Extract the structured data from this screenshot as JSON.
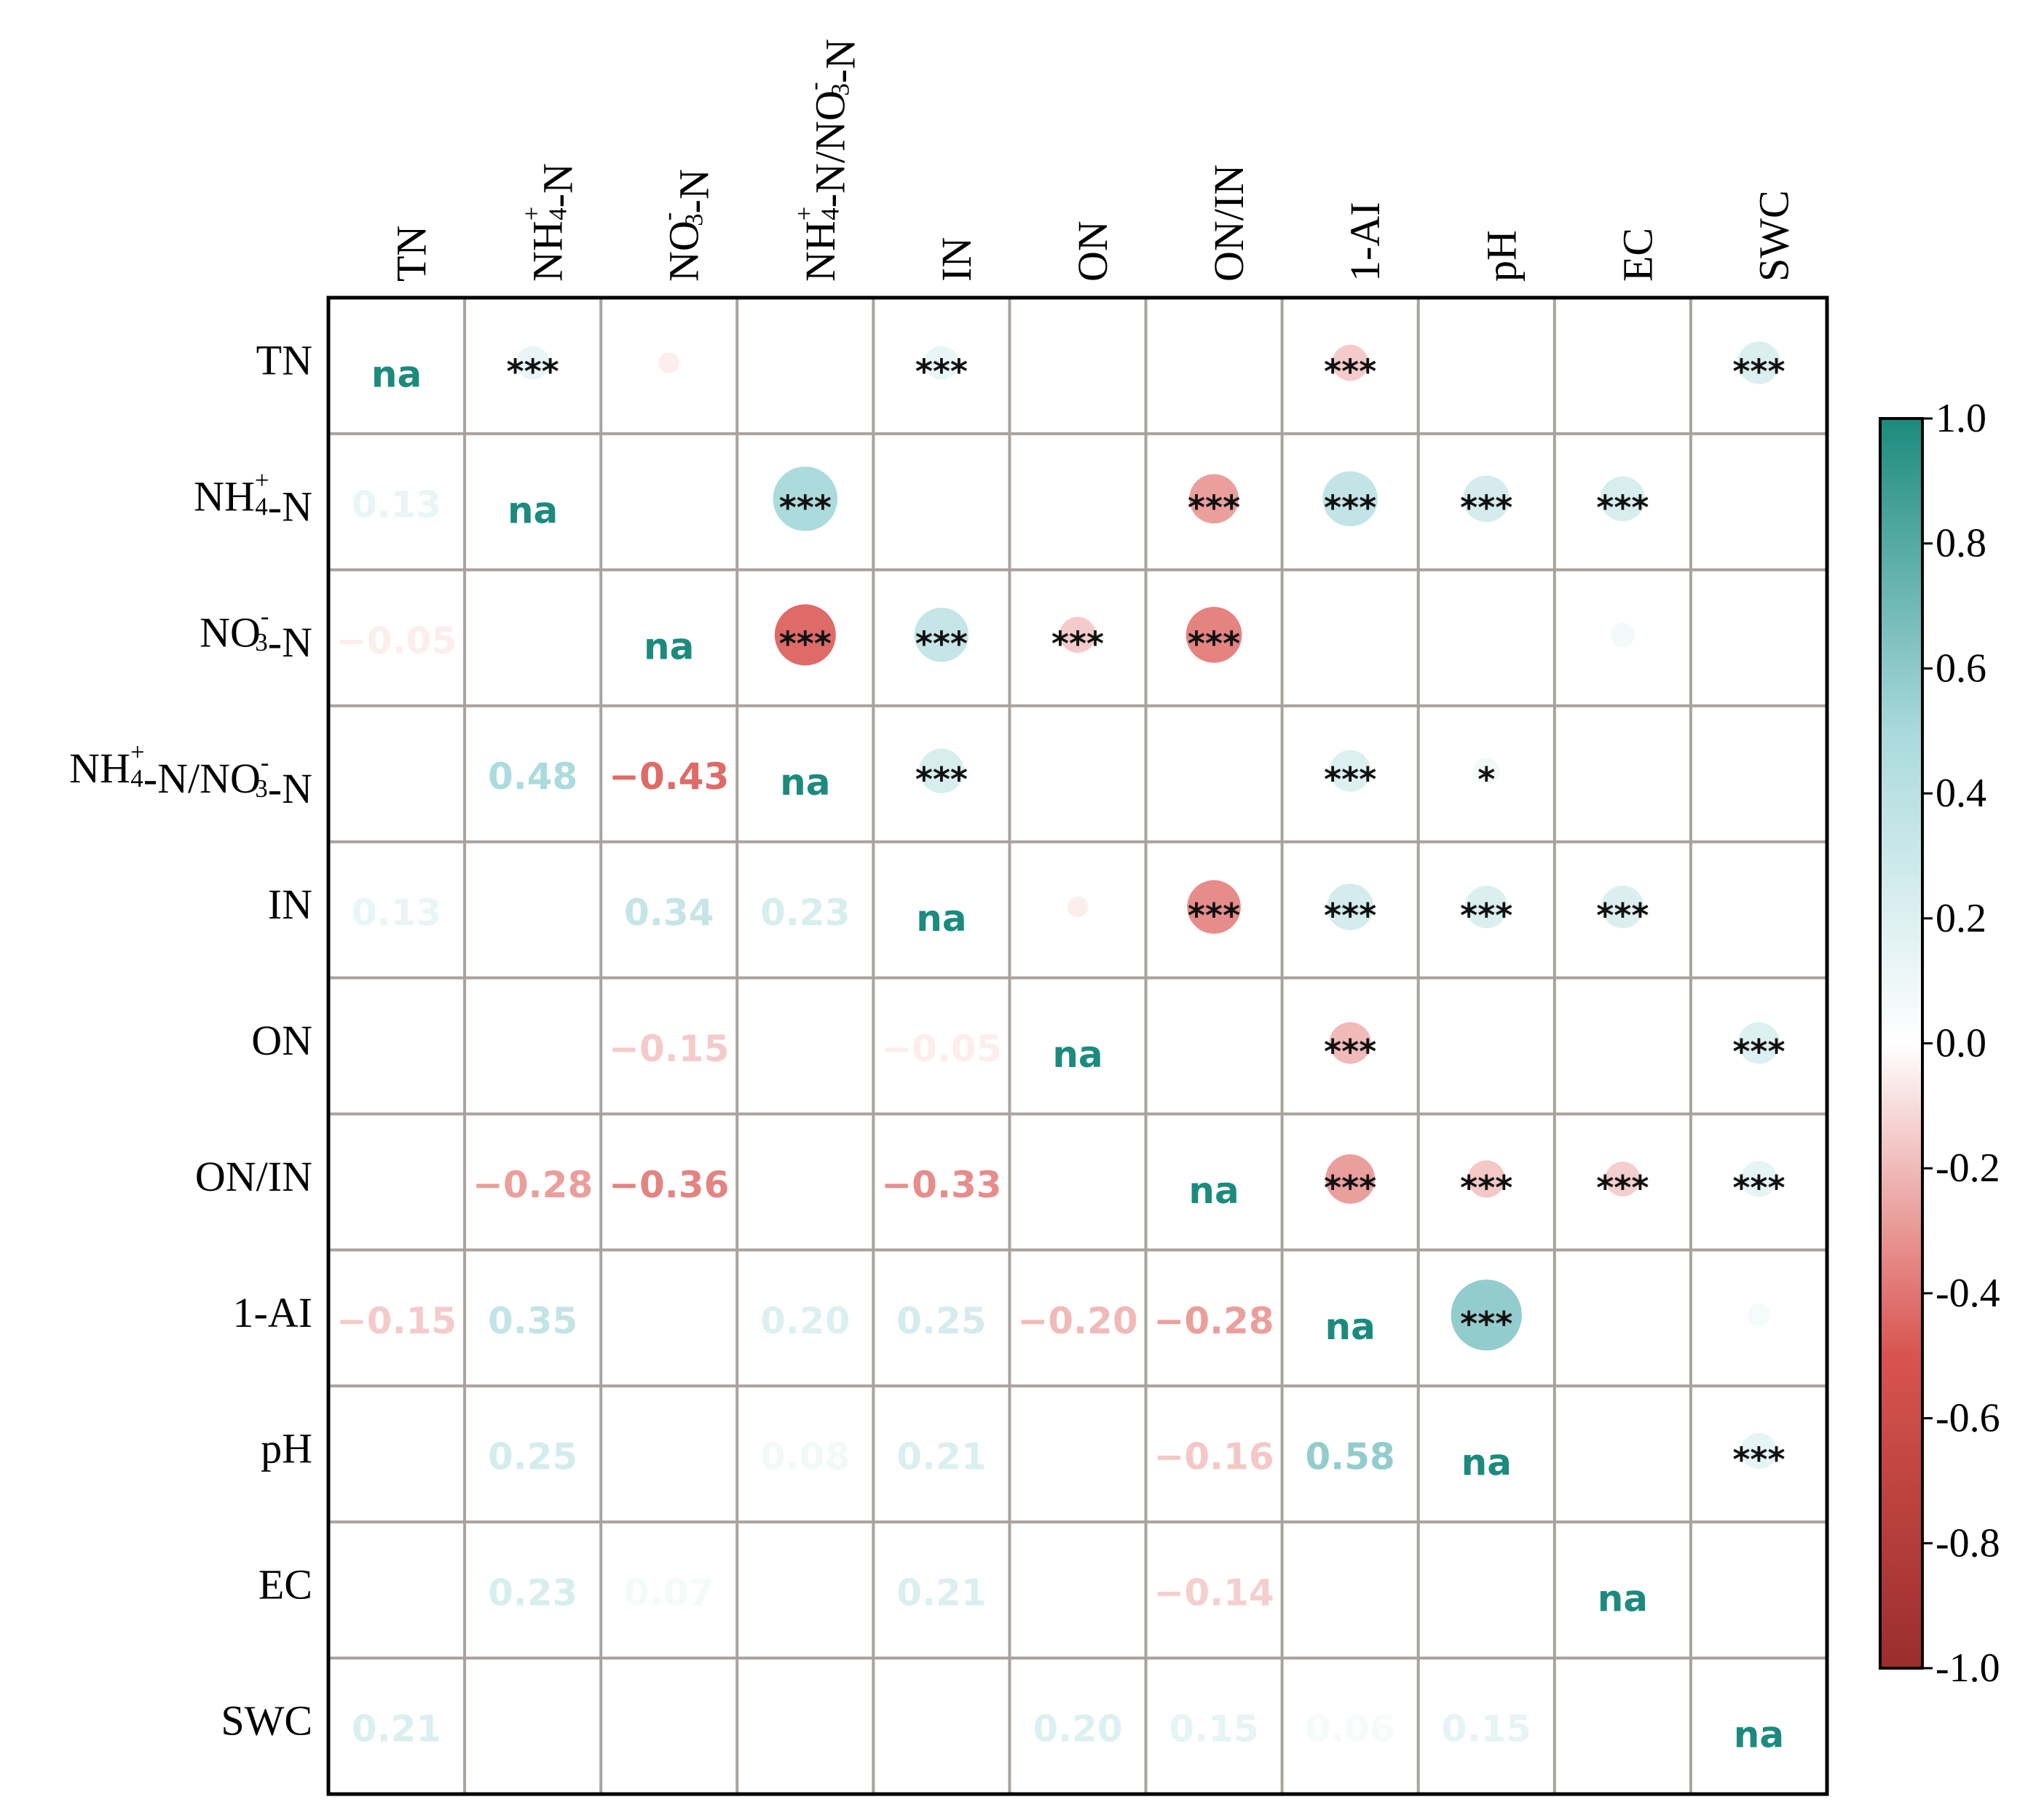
{
  "chart_data": {
    "type": "heatmap",
    "title": "",
    "variables": [
      "TN",
      "NH4+-N",
      "NO3--N",
      "NH4+-N/NO3--N",
      "IN",
      "ON",
      "ON/IN",
      "1-AI",
      "pH",
      "EC",
      "SWC"
    ],
    "labels": [
      {
        "base": "TN"
      },
      {
        "base": "NH",
        "sub": "4",
        "sup": "+",
        "rest": "-N"
      },
      {
        "base": "NO",
        "sub": "3",
        "sup": "-",
        "rest": "-N"
      },
      {
        "base": "NH",
        "sub": "4",
        "sup": "+",
        "rest": "-N/NO",
        "sub2": "3",
        "sup2": "-",
        "rest2": "-N"
      },
      {
        "base": "IN"
      },
      {
        "base": "ON"
      },
      {
        "base": "ON/IN"
      },
      {
        "base": "1-AI"
      },
      {
        "base": "pH"
      },
      {
        "base": "EC"
      },
      {
        "base": "SWC"
      }
    ],
    "diagonal_label": "na",
    "matrix": [
      [
        null,
        0.13,
        -0.05,
        null,
        0.13,
        null,
        null,
        -0.15,
        null,
        null,
        0.21
      ],
      [
        0.13,
        null,
        null,
        0.48,
        null,
        null,
        -0.28,
        0.35,
        0.25,
        0.23,
        null
      ],
      [
        -0.05,
        null,
        null,
        -0.43,
        0.34,
        -0.15,
        -0.36,
        null,
        null,
        0.07,
        null
      ],
      [
        null,
        0.48,
        -0.43,
        null,
        0.23,
        null,
        null,
        0.2,
        0.08,
        null,
        null
      ],
      [
        0.13,
        null,
        0.34,
        0.23,
        null,
        -0.05,
        -0.33,
        0.25,
        0.21,
        0.21,
        null
      ],
      [
        null,
        null,
        -0.15,
        null,
        -0.05,
        null,
        null,
        -0.2,
        null,
        null,
        0.2
      ],
      [
        null,
        -0.28,
        -0.36,
        null,
        -0.33,
        null,
        null,
        -0.28,
        -0.16,
        -0.14,
        0.15
      ],
      [
        -0.15,
        0.35,
        null,
        0.2,
        0.25,
        -0.2,
        -0.28,
        null,
        0.58,
        null,
        0.06
      ],
      [
        null,
        0.25,
        null,
        0.08,
        0.21,
        null,
        -0.16,
        0.58,
        null,
        null,
        0.15
      ],
      [
        null,
        0.23,
        0.07,
        null,
        0.21,
        null,
        -0.14,
        null,
        null,
        null,
        null
      ],
      [
        0.21,
        null,
        null,
        null,
        null,
        0.2,
        0.15,
        0.06,
        0.15,
        null,
        null
      ]
    ],
    "significance": [
      [
        "",
        "***",
        "",
        "",
        "***",
        "",
        "",
        "***",
        "",
        "",
        "***"
      ],
      [
        "***",
        "",
        "",
        "***",
        "",
        "",
        "***",
        "***",
        "***",
        "***",
        ""
      ],
      [
        "",
        "",
        "",
        "***",
        "***",
        "***",
        "***",
        "",
        "",
        "",
        ""
      ],
      [
        "",
        "***",
        "***",
        "",
        "***",
        "",
        "",
        "***",
        "*",
        "",
        ""
      ],
      [
        "***",
        "",
        "***",
        "***",
        "",
        "",
        "***",
        "***",
        "***",
        "***",
        ""
      ],
      [
        "",
        "",
        "***",
        "",
        "",
        "",
        "",
        "***",
        "",
        "",
        "***"
      ],
      [
        "",
        "***",
        "***",
        "",
        "***",
        "",
        "",
        "***",
        "***",
        "***",
        "***"
      ],
      [
        "***",
        "***",
        "",
        "***",
        "***",
        "***",
        "***",
        "",
        "***",
        "",
        ""
      ],
      [
        "",
        "***",
        "",
        "*",
        "***",
        "",
        "***",
        "***",
        "",
        "",
        "***"
      ],
      [
        "",
        "***",
        "",
        "",
        "***",
        "",
        "***",
        "",
        "",
        "",
        ""
      ],
      [
        "***",
        "",
        "",
        "",
        "",
        "***",
        "***",
        "",
        "***",
        "",
        ""
      ]
    ],
    "colorbar": {
      "range": [
        -1.0,
        1.0
      ],
      "ticks": [
        "1.0",
        "0.8",
        "0.6",
        "0.4",
        "0.2",
        "0.0",
        "-0.2",
        "-0.4",
        "-0.6",
        "-0.8",
        "-1.0"
      ],
      "tick_values": [
        1.0,
        0.8,
        0.6,
        0.4,
        0.2,
        0.0,
        -0.2,
        -0.4,
        -0.6,
        -0.8,
        -1.0
      ],
      "placement": "right"
    },
    "colors": {
      "positive": "#1d8a7e",
      "negative": "#9a2e2c",
      "neutral": "#ffffff",
      "diagonal_text": "#1d8a7e",
      "grid": "#a9a39c",
      "border": "#000000"
    }
  }
}
